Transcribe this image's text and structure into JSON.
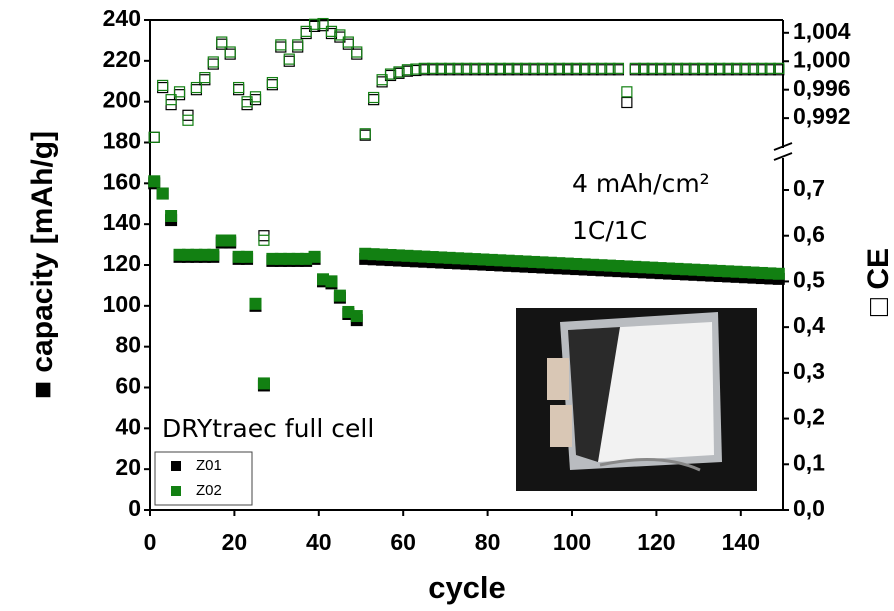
{
  "chart_data": {
    "type": "scatter",
    "x_label": "cycle",
    "y_label": "■ capacity [mAh/g]",
    "y2_label": "□ CE",
    "annotations": [
      "4 mAh/cm²",
      "1C/1C",
      "DRYtraec full cell"
    ],
    "xlim": [
      0,
      150
    ],
    "xticks": [
      0,
      20,
      40,
      60,
      80,
      100,
      120,
      140
    ],
    "ylim": [
      0,
      240
    ],
    "yticks": [
      0,
      20,
      40,
      60,
      80,
      100,
      120,
      140,
      160,
      180,
      200,
      220,
      240
    ],
    "y2lim": [
      0,
      0.77
    ],
    "y2ticks": [
      {
        "value": 0,
        "label": "0,0"
      },
      {
        "value": 0.1,
        "label": "0,1"
      },
      {
        "value": 0.2,
        "label": "0,2"
      },
      {
        "value": 0.3,
        "label": "0,3"
      },
      {
        "value": 0.4,
        "label": "0,4"
      },
      {
        "value": 0.5,
        "label": "0,5"
      },
      {
        "value": 0.6,
        "label": "0,6"
      },
      {
        "value": 0.7,
        "label": "0,7"
      }
    ],
    "y2_upper_lim": [
      0.9878,
      1.0058
    ],
    "y2_upper_ticks": [
      {
        "value": 0.992,
        "label": "0,992"
      },
      {
        "value": 0.996,
        "label": "0,996"
      },
      {
        "value": 1.0,
        "label": "1,000"
      },
      {
        "value": 1.004,
        "label": "1,004"
      }
    ],
    "x": [
      1,
      3,
      5,
      7,
      9,
      11,
      13,
      15,
      17,
      19,
      21,
      23,
      25,
      27,
      29,
      31,
      33,
      35,
      37,
      39,
      41,
      43,
      45,
      47,
      49,
      51,
      53,
      55,
      57,
      59,
      61,
      63,
      65,
      67,
      69,
      71,
      73,
      75,
      77,
      79,
      81,
      83,
      85,
      87,
      89,
      91,
      93,
      95,
      97,
      99,
      101,
      103,
      105,
      107,
      109,
      111,
      113,
      115,
      117,
      119,
      121,
      123,
      125,
      127,
      129,
      131,
      133,
      135,
      137,
      139,
      141,
      143,
      145,
      147,
      149
    ],
    "series": [
      {
        "name": "Z01",
        "color": "#000000",
        "values": [
          160,
          155,
          142,
          124,
          124,
          124,
          124,
          124,
          131,
          131,
          123,
          123,
          100,
          61,
          122,
          122,
          122,
          122,
          122,
          123,
          112,
          111,
          104,
          96,
          93,
          123,
          122.8,
          122.6,
          122.4,
          122.2,
          122,
          121.8,
          121.6,
          121.4,
          121.2,
          121,
          120.8,
          120.6,
          120.4,
          120.2,
          120,
          119.8,
          119.6,
          119.4,
          119.2,
          119,
          118.8,
          118.6,
          118.4,
          118.2,
          118,
          117.8,
          117.6,
          117.4,
          117.2,
          117,
          116.8,
          116.6,
          116.4,
          116.2,
          116,
          115.8,
          115.6,
          115.4,
          115.2,
          115,
          114.8,
          114.6,
          114.4,
          114.2,
          114,
          113.8,
          113.6,
          113.4,
          113.2
        ],
        "ce": [
          0.9893,
          0.9963,
          0.9939,
          0.9953,
          0.9924,
          0.996,
          0.9974,
          0.9996,
          1.0024,
          1.001,
          0.996,
          0.9939,
          0.9946,
          0.6,
          0.9967,
          1.002,
          1.0,
          1.002,
          1.0039,
          1.0049,
          1.005,
          1.0039,
          1.0034,
          1.0024,
          1.001,
          0.9896,
          0.9946,
          0.9971,
          0.998,
          0.9983,
          0.9986,
          0.9987,
          0.9988,
          0.9988,
          0.9988,
          0.9988,
          0.9988,
          0.9988,
          0.9988,
          0.9988,
          0.9988,
          0.9988,
          0.9988,
          0.9988,
          0.9988,
          0.9988,
          0.9988,
          0.9988,
          0.9988,
          0.9988,
          0.9988,
          0.9988,
          0.9988,
          0.9988,
          0.9988,
          0.9988,
          0.9942,
          0.9988,
          0.9988,
          0.9988,
          0.9988,
          0.9988,
          0.9988,
          0.9988,
          0.9988,
          0.9988,
          0.9988,
          0.9988,
          0.9988,
          0.9988,
          0.9988,
          0.9988,
          0.9988,
          0.9988,
          0.9988
        ]
      },
      {
        "name": "Z02",
        "color": "#128012",
        "values": [
          161,
          155,
          144,
          125,
          125,
          125,
          125,
          125,
          132,
          132,
          124,
          124,
          101,
          62,
          123,
          123,
          123,
          123,
          123,
          124,
          113,
          112,
          105,
          97,
          95,
          125.5,
          125.3,
          125.1,
          124.9,
          124.7,
          124.5,
          124.3,
          124.1,
          123.9,
          123.7,
          123.5,
          123.3,
          123.1,
          122.9,
          122.7,
          122.5,
          122.3,
          122.1,
          121.9,
          121.7,
          121.5,
          121.3,
          121.1,
          120.9,
          120.7,
          120.5,
          120.3,
          120.1,
          119.9,
          119.7,
          119.5,
          119.3,
          119.1,
          118.9,
          118.7,
          118.5,
          118.3,
          118.1,
          117.9,
          117.7,
          117.5,
          117.3,
          117.1,
          116.9,
          116.7,
          116.5,
          116.3,
          116.1,
          115.9,
          115.7
        ],
        "ce": [
          0.9893,
          0.9966,
          0.9946,
          0.9957,
          0.9917,
          0.9963,
          0.9977,
          0.9999,
          1.0027,
          1.0013,
          0.9963,
          0.9943,
          0.995,
          0.59,
          0.997,
          1.0023,
          1.0003,
          1.0023,
          1.0042,
          1.0052,
          1.0053,
          1.0042,
          1.0037,
          1.0027,
          1.0013,
          0.9898,
          0.9949,
          0.9974,
          0.9982,
          0.9985,
          0.9988,
          0.9989,
          0.999,
          0.999,
          0.999,
          0.999,
          0.999,
          0.999,
          0.999,
          0.999,
          0.999,
          0.999,
          0.999,
          0.999,
          0.999,
          0.999,
          0.999,
          0.999,
          0.999,
          0.999,
          0.999,
          0.999,
          0.999,
          0.999,
          0.999,
          0.999,
          0.9957,
          0.999,
          0.999,
          0.999,
          0.999,
          0.999,
          0.999,
          0.999,
          0.999,
          0.999,
          0.999,
          0.999,
          0.999,
          0.999,
          0.999,
          0.999,
          0.999,
          0.999,
          0.999
        ]
      }
    ]
  }
}
